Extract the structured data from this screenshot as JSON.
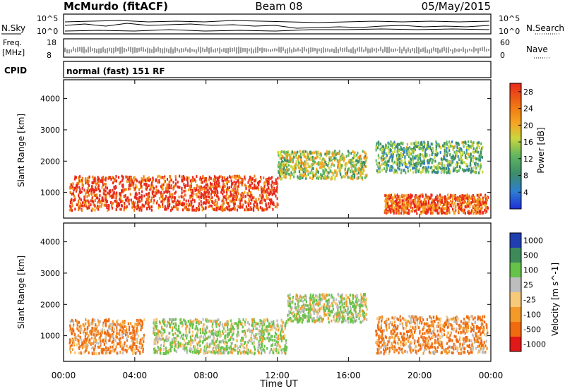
{
  "header": {
    "station": "McMurdo (fitACF)",
    "beam": "Beam 08",
    "date": "05/May/2015"
  },
  "summary": {
    "nsky_label": "N.Sky",
    "nsky_ticks": [
      "10^5",
      "10^0"
    ],
    "nsearch_label": "N.Search",
    "nsearch_ticks": [
      "10^5",
      "10^0"
    ],
    "freq_label": "Freq.",
    "freq_unit": "[MHz]",
    "freq_ticks": [
      "18",
      "8"
    ],
    "nave_label": "Nave",
    "nave_ticks": [
      "60",
      "0"
    ],
    "cpid_label": "CPID",
    "cpid_value": "normal (fast) 151 RF"
  },
  "chart_data": [
    {
      "type": "heatmap",
      "panel": "power",
      "ylabel": "Slant Range [km]",
      "xlabel": "",
      "xlim": [
        "00:00",
        "24:00"
      ],
      "ylim": [
        180,
        4600
      ],
      "y_ticks": [
        1000,
        2000,
        3000,
        4000
      ],
      "x_ticks": [
        "00:00",
        "04:00",
        "08:00",
        "12:00",
        "16:00",
        "20:00",
        "00:00"
      ],
      "colorbar": {
        "label": "Power [dB]",
        "ticks": [
          4,
          8,
          12,
          16,
          20,
          24,
          28
        ],
        "range": [
          0,
          30
        ],
        "colors": [
          "#1f2fd8",
          "#2e7fd0",
          "#3d8c6a",
          "#5fb55f",
          "#c9d640",
          "#f5a623",
          "#f07d14",
          "#e8291c"
        ]
      },
      "observations": [
        {
          "range_km": [
            400,
            1500
          ],
          "time_h": [
            0.3,
            12
          ],
          "value_db": 28
        },
        {
          "range_km": [
            1400,
            2300
          ],
          "time_h": [
            12,
            17
          ],
          "value_db": 16
        },
        {
          "range_km": [
            1600,
            2600
          ],
          "time_h": [
            17.5,
            23.5
          ],
          "value_db": 12
        },
        {
          "range_km": [
            300,
            900
          ],
          "time_h": [
            18,
            23.8
          ],
          "value_db": 26
        }
      ]
    },
    {
      "type": "heatmap",
      "panel": "velocity",
      "ylabel": "Slant Range [km]",
      "xlabel": "Time UT",
      "xlim": [
        "00:00",
        "24:00"
      ],
      "ylim": [
        180,
        4600
      ],
      "y_ticks": [
        1000,
        2000,
        3000,
        4000
      ],
      "x_ticks": [
        "00:00",
        "04:00",
        "08:00",
        "12:00",
        "16:00",
        "20:00",
        "00:00"
      ],
      "colorbar": {
        "label": "Velocity [m s^-1]",
        "ticks": [
          1000,
          500,
          100,
          25,
          -25,
          -100,
          -500,
          -1000
        ],
        "colors": [
          "#1f3fb0",
          "#3e8a5a",
          "#67c24a",
          "#bdbdbd",
          "#f7c97a",
          "#f39a2a",
          "#f06a10",
          "#e01818"
        ]
      },
      "observations": [
        {
          "range_km": [
            400,
            1500
          ],
          "time_h": [
            0.3,
            4.5
          ],
          "value_ms": -100
        },
        {
          "range_km": [
            400,
            1500
          ],
          "time_h": [
            5,
            12.5
          ],
          "value_ms": 100
        },
        {
          "range_km": [
            1400,
            2300
          ],
          "time_h": [
            12.5,
            17
          ],
          "value_ms": 100
        },
        {
          "range_km": [
            400,
            1600
          ],
          "time_h": [
            17.5,
            23.8
          ],
          "value_ms": -100
        }
      ]
    }
  ]
}
